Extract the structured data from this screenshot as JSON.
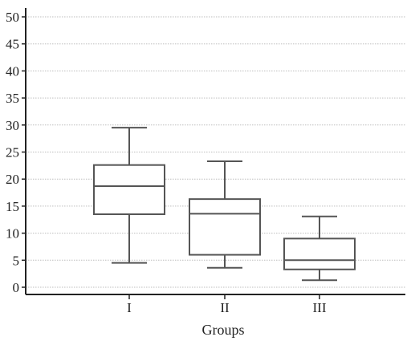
{
  "chart_data": {
    "type": "box",
    "title": "",
    "xlabel": "Groups",
    "ylabel": "",
    "categories": [
      "I",
      "II",
      "III"
    ],
    "ylim": [
      0,
      50
    ],
    "yticks": [
      0,
      5,
      10,
      15,
      20,
      25,
      30,
      35,
      40,
      45,
      50
    ],
    "grid": "horizontal dotted",
    "boxes": [
      {
        "category": "I",
        "whisker_low": 4.5,
        "q1": 13.5,
        "median": 18.7,
        "q3": 22.6,
        "whisker_high": 29.5
      },
      {
        "category": "II",
        "whisker_low": 3.6,
        "q1": 6.0,
        "median": 13.6,
        "q3": 16.3,
        "whisker_high": 23.3
      },
      {
        "category": "III",
        "whisker_low": 1.3,
        "q1": 3.3,
        "median": 5.0,
        "q3": 9.0,
        "whisker_high": 13.1
      }
    ],
    "colors": {
      "line": "#555555",
      "axis": "#222222",
      "grid": "#bdbdbd"
    }
  }
}
